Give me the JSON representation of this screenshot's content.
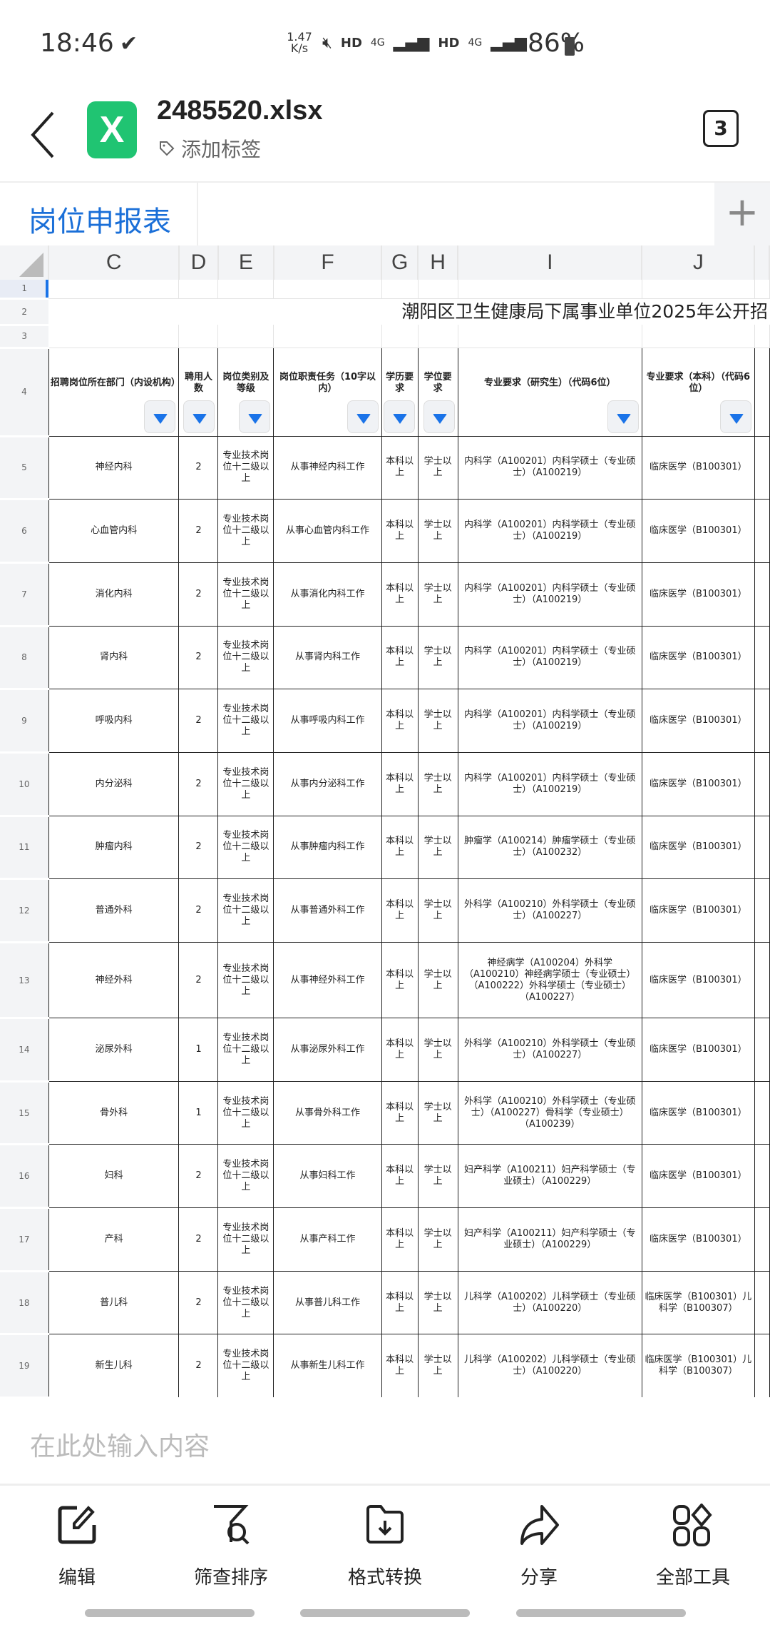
{
  "status": {
    "time": "18:46",
    "net_speed": "1.47 K/s",
    "hd1": "HD",
    "sig1": "4G",
    "hd2": "HD",
    "sig2": "4G",
    "battery": "86%"
  },
  "header": {
    "file_name": "2485520.xlsx",
    "file_icon_letter": "X",
    "tag_label": "添加标签",
    "window_count": "3"
  },
  "sheet_tabs": [
    {
      "label": "岗位申报表",
      "active": true
    }
  ],
  "columns": [
    "C",
    "D",
    "E",
    "F",
    "G",
    "H",
    "I",
    "J"
  ],
  "row_numbers": [
    "1",
    "2",
    "3",
    "4"
  ],
  "title": "潮阳区卫生健康局下属事业单位2025年公开招",
  "table_headers": [
    "招聘岗位所在部门（内设机构）",
    "聘用人数",
    "岗位类别及等级",
    "岗位职责任务（10字以内）",
    "学历要求",
    "学位要求",
    "专业要求（研究生）（代码6位）",
    "专业要求（本科）（代码6位）"
  ],
  "rows": [
    {
      "n": "5",
      "dept": "神经内科",
      "count": "2",
      "type": "专业技术岗位十二级以上",
      "duty": "从事神经内科工作",
      "edu": "本科以上",
      "degree": "学士以上",
      "grad": "内科学（A100201）内科学硕士（专业硕士）（A100219）",
      "ug": "临床医学（B100301）"
    },
    {
      "n": "6",
      "dept": "心血管内科",
      "count": "2",
      "type": "专业技术岗位十二级以上",
      "duty": "从事心血管内科工作",
      "edu": "本科以上",
      "degree": "学士以上",
      "grad": "内科学（A100201）内科学硕士（专业硕士）（A100219）",
      "ug": "临床医学（B100301）"
    },
    {
      "n": "7",
      "dept": "消化内科",
      "count": "2",
      "type": "专业技术岗位十二级以上",
      "duty": "从事消化内科工作",
      "edu": "本科以上",
      "degree": "学士以上",
      "grad": "内科学（A100201）内科学硕士（专业硕士）（A100219）",
      "ug": "临床医学（B100301）"
    },
    {
      "n": "8",
      "dept": "肾内科",
      "count": "2",
      "type": "专业技术岗位十二级以上",
      "duty": "从事肾内科工作",
      "edu": "本科以上",
      "degree": "学士以上",
      "grad": "内科学（A100201）内科学硕士（专业硕士）（A100219）",
      "ug": "临床医学（B100301）"
    },
    {
      "n": "9",
      "dept": "呼吸内科",
      "count": "2",
      "type": "专业技术岗位十二级以上",
      "duty": "从事呼吸内科工作",
      "edu": "本科以上",
      "degree": "学士以上",
      "grad": "内科学（A100201）内科学硕士（专业硕士）（A100219）",
      "ug": "临床医学（B100301）"
    },
    {
      "n": "10",
      "dept": "内分泌科",
      "count": "2",
      "type": "专业技术岗位十二级以上",
      "duty": "从事内分泌科工作",
      "edu": "本科以上",
      "degree": "学士以上",
      "grad": "内科学（A100201）内科学硕士（专业硕士）（A100219）",
      "ug": "临床医学（B100301）"
    },
    {
      "n": "11",
      "dept": "肿瘤内科",
      "count": "2",
      "type": "专业技术岗位十二级以上",
      "duty": "从事肿瘤内科工作",
      "edu": "本科以上",
      "degree": "学士以上",
      "grad": "肿瘤学（A100214）肿瘤学硕士（专业硕士）（A100232）",
      "ug": "临床医学（B100301）"
    },
    {
      "n": "12",
      "dept": "普通外科",
      "count": "2",
      "type": "专业技术岗位十二级以上",
      "duty": "从事普通外科工作",
      "edu": "本科以上",
      "degree": "学士以上",
      "grad": "外科学（A100210）外科学硕士（专业硕士）（A100227）",
      "ug": "临床医学（B100301）"
    },
    {
      "n": "13",
      "dept": "神经外科",
      "count": "2",
      "type": "专业技术岗位十二级以上",
      "duty": "从事神经外科工作",
      "edu": "本科以上",
      "degree": "学士以上",
      "grad": "神经病学（A100204）外科学（A100210）神经病学硕士（专业硕士）（A100222）外科学硕士（专业硕士）（A100227）",
      "ug": "临床医学（B100301）",
      "tall": true
    },
    {
      "n": "14",
      "dept": "泌尿外科",
      "count": "1",
      "type": "专业技术岗位十二级以上",
      "duty": "从事泌尿外科工作",
      "edu": "本科以上",
      "degree": "学士以上",
      "grad": "外科学（A100210）外科学硕士（专业硕士）（A100227）",
      "ug": "临床医学（B100301）"
    },
    {
      "n": "15",
      "dept": "骨外科",
      "count": "1",
      "type": "专业技术岗位十二级以上",
      "duty": "从事骨外科工作",
      "edu": "本科以上",
      "degree": "学士以上",
      "grad": "外科学（A100210）外科学硕士（专业硕士）（A100227）骨科学（专业硕士）（A100239）",
      "ug": "临床医学（B100301）"
    },
    {
      "n": "16",
      "dept": "妇科",
      "count": "2",
      "type": "专业技术岗位十二级以上",
      "duty": "从事妇科工作",
      "edu": "本科以上",
      "degree": "学士以上",
      "grad": "妇产科学（A100211）妇产科学硕士（专业硕士）（A100229）",
      "ug": "临床医学（B100301）"
    },
    {
      "n": "17",
      "dept": "产科",
      "count": "2",
      "type": "专业技术岗位十二级以上",
      "duty": "从事产科工作",
      "edu": "本科以上",
      "degree": "学士以上",
      "grad": "妇产科学（A100211）妇产科学硕士（专业硕士）（A100229）",
      "ug": "临床医学（B100301）"
    },
    {
      "n": "18",
      "dept": "普儿科",
      "count": "2",
      "type": "专业技术岗位十二级以上",
      "duty": "从事普儿科工作",
      "edu": "本科以上",
      "degree": "学士以上",
      "grad": "儿科学（A100202）儿科学硕士（专业硕士）（A100220）",
      "ug": "临床医学（B100301）儿科学（B100307）"
    },
    {
      "n": "19",
      "dept": "新生儿科",
      "count": "2",
      "type": "专业技术岗位十二级以上",
      "duty": "从事新生儿科工作",
      "edu": "本科以上",
      "degree": "学士以上",
      "grad": "儿科学（A100202）儿科学硕士（专业硕士）（A100220）",
      "ug": "临床医学（B100301）儿科学（B100307）"
    }
  ],
  "input": {
    "placeholder": "在此处输入内容"
  },
  "toolbar": [
    {
      "label": "编辑",
      "icon": "edit-icon"
    },
    {
      "label": "筛查排序",
      "icon": "filter-search-icon"
    },
    {
      "label": "格式转换",
      "icon": "folder-download-icon"
    },
    {
      "label": "分享",
      "icon": "share-icon"
    },
    {
      "label": "全部工具",
      "icon": "all-tools-icon"
    }
  ],
  "colors": {
    "accent": "#1a73e8",
    "excel_green": "#20c472",
    "tab_blue": "#1a6fd8"
  }
}
